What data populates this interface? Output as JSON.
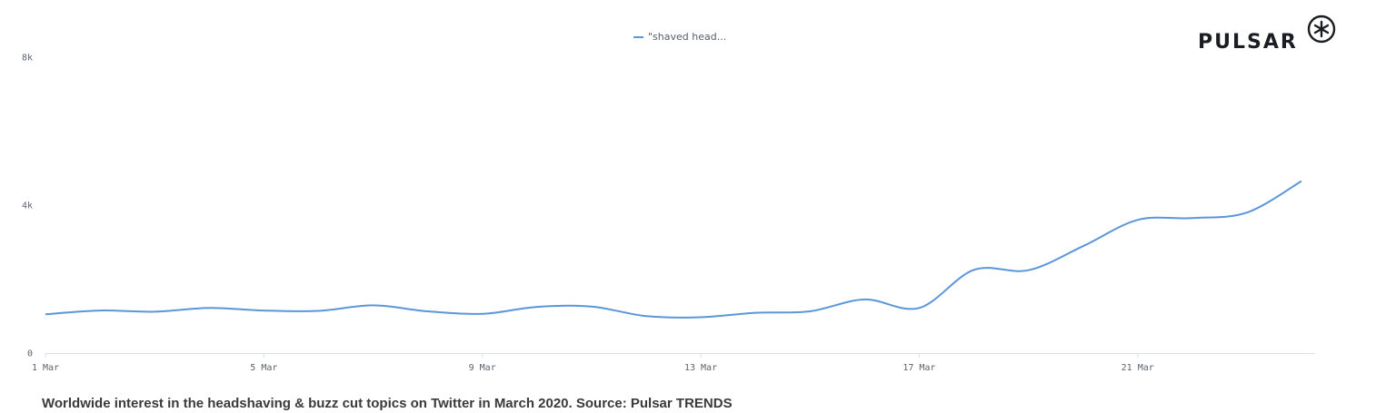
{
  "logo": {
    "text": "PULSAR"
  },
  "caption": "Worldwide interest in the headshaving & buzz cut topics on Twitter in March 2020. Source: Pulsar TRENDS",
  "chart_data": {
    "type": "line",
    "title": "",
    "xlabel": "",
    "ylabel": "",
    "x": [
      1,
      2,
      3,
      4,
      5,
      6,
      7,
      8,
      9,
      10,
      11,
      12,
      13,
      14,
      15,
      16,
      17,
      18,
      19,
      20,
      21,
      22,
      23,
      24
    ],
    "x_tick_values": [
      1,
      5,
      9,
      13,
      17,
      21
    ],
    "x_tick_labels": [
      "1 Mar",
      "5 Mar",
      "9 Mar",
      "13 Mar",
      "17 Mar",
      "21 Mar"
    ],
    "y_tick_values": [
      0,
      4000,
      8000
    ],
    "y_tick_labels": [
      "0",
      "4k",
      "8k"
    ],
    "xlim": [
      1,
      24.25
    ],
    "ylim": [
      0,
      8000
    ],
    "grid": false,
    "legend": "top-center",
    "series": [
      {
        "name": "\"shaved head...",
        "color": "#5b96d9",
        "values": [
          1050,
          1150,
          1120,
          1220,
          1150,
          1140,
          1290,
          1130,
          1060,
          1250,
          1260,
          1000,
          970,
          1090,
          1130,
          1450,
          1220,
          2250,
          2240,
          2890,
          3600,
          3650,
          3800,
          4650
        ]
      }
    ]
  }
}
